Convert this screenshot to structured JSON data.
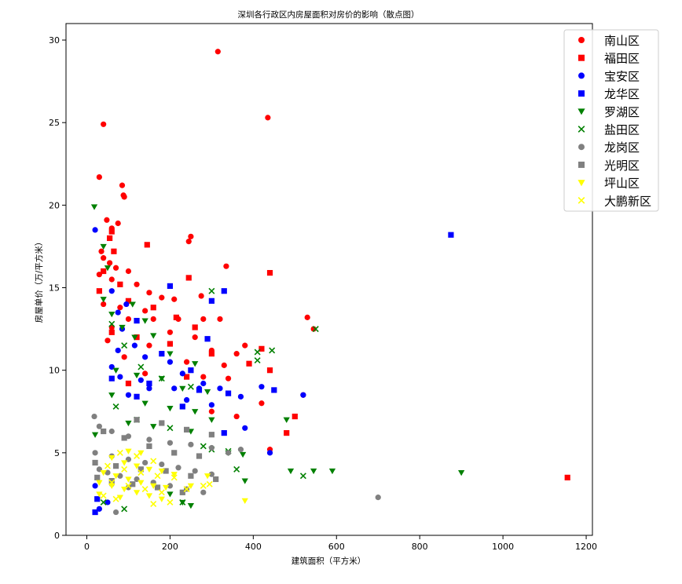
{
  "chart_data": {
    "type": "scatter",
    "title": "深圳各行政区内房屋面积对房价的影响（散点图）",
    "xlabel": "建筑面积（平方米）",
    "ylabel": "房屋单价（万/平方米）",
    "xlim": [
      -50,
      1215
    ],
    "ylim": [
      0,
      31
    ],
    "xticks": [
      0,
      200,
      400,
      600,
      800,
      1000,
      1200
    ],
    "yticks": [
      0,
      5,
      10,
      15,
      20,
      25,
      30
    ],
    "grid": false,
    "legend_position": "top-right",
    "series": [
      {
        "name": "南山区",
        "color": "#ff0000",
        "marker": "circle",
        "points": [
          [
            315,
            29.3
          ],
          [
            40,
            24.9
          ],
          [
            435,
            25.3
          ],
          [
            30,
            21.7
          ],
          [
            85,
            21.2
          ],
          [
            88,
            20.6
          ],
          [
            90,
            20.5
          ],
          [
            48,
            19.1
          ],
          [
            75,
            18.9
          ],
          [
            60,
            18.6
          ],
          [
            250,
            18.1
          ],
          [
            245,
            17.8
          ],
          [
            35,
            17.2
          ],
          [
            40,
            16.8
          ],
          [
            55,
            16.5
          ],
          [
            70,
            16.2
          ],
          [
            335,
            16.3
          ],
          [
            100,
            16.0
          ],
          [
            30,
            15.8
          ],
          [
            60,
            15.5
          ],
          [
            120,
            15.2
          ],
          [
            150,
            14.7
          ],
          [
            180,
            14.4
          ],
          [
            210,
            14.3
          ],
          [
            275,
            14.5
          ],
          [
            40,
            14.0
          ],
          [
            80,
            13.8
          ],
          [
            140,
            13.6
          ],
          [
            530,
            13.2
          ],
          [
            545,
            12.5
          ],
          [
            100,
            13.1
          ],
          [
            160,
            13.1
          ],
          [
            220,
            13.1
          ],
          [
            280,
            13.1
          ],
          [
            320,
            13.1
          ],
          [
            60,
            12.6
          ],
          [
            200,
            12.3
          ],
          [
            260,
            12.0
          ],
          [
            50,
            11.8
          ],
          [
            150,
            11.5
          ],
          [
            300,
            11.2
          ],
          [
            360,
            11.0
          ],
          [
            380,
            11.5
          ],
          [
            90,
            10.8
          ],
          [
            240,
            10.5
          ],
          [
            330,
            10.3
          ],
          [
            140,
            9.8
          ],
          [
            280,
            9.6
          ],
          [
            340,
            9.5
          ],
          [
            420,
            8.0
          ],
          [
            520,
            8.5
          ],
          [
            300,
            7.5
          ],
          [
            360,
            7.2
          ],
          [
            440,
            5.2
          ]
        ]
      },
      {
        "name": "福田区",
        "color": "#ff0000",
        "marker": "square",
        "points": [
          [
            60,
            18.4
          ],
          [
            55,
            18.0
          ],
          [
            65,
            17.2
          ],
          [
            145,
            17.6
          ],
          [
            40,
            16.0
          ],
          [
            80,
            15.2
          ],
          [
            440,
            15.9
          ],
          [
            245,
            15.6
          ],
          [
            30,
            14.8
          ],
          [
            100,
            14.2
          ],
          [
            160,
            13.8
          ],
          [
            215,
            13.2
          ],
          [
            260,
            12.6
          ],
          [
            60,
            12.3
          ],
          [
            120,
            12.0
          ],
          [
            200,
            11.6
          ],
          [
            300,
            11.0
          ],
          [
            420,
            11.3
          ],
          [
            390,
            10.4
          ],
          [
            440,
            10.0
          ],
          [
            240,
            9.6
          ],
          [
            100,
            9.2
          ],
          [
            480,
            6.2
          ],
          [
            500,
            7.2
          ],
          [
            1155,
            3.5
          ]
        ]
      },
      {
        "name": "宝安区",
        "color": "#0000ff",
        "marker": "circle",
        "points": [
          [
            20,
            18.5
          ],
          [
            60,
            14.8
          ],
          [
            75,
            13.5
          ],
          [
            95,
            14.0
          ],
          [
            85,
            12.5
          ],
          [
            115,
            11.5
          ],
          [
            75,
            11.2
          ],
          [
            140,
            10.8
          ],
          [
            200,
            10.5
          ],
          [
            60,
            10.2
          ],
          [
            230,
            9.8
          ],
          [
            80,
            9.6
          ],
          [
            130,
            9.4
          ],
          [
            280,
            9.2
          ],
          [
            420,
            9.0
          ],
          [
            150,
            8.9
          ],
          [
            210,
            8.9
          ],
          [
            270,
            8.9
          ],
          [
            320,
            8.9
          ],
          [
            370,
            8.4
          ],
          [
            520,
            8.5
          ],
          [
            100,
            8.5
          ],
          [
            240,
            8.2
          ],
          [
            300,
            7.9
          ],
          [
            380,
            6.5
          ],
          [
            440,
            5.0
          ],
          [
            20,
            3.0
          ],
          [
            30,
            1.6
          ],
          [
            50,
            2.0
          ]
        ]
      },
      {
        "name": "龙华区",
        "color": "#0000ff",
        "marker": "square",
        "points": [
          [
            875,
            18.2
          ],
          [
            200,
            15.1
          ],
          [
            330,
            14.8
          ],
          [
            300,
            14.2
          ],
          [
            120,
            13.0
          ],
          [
            290,
            11.9
          ],
          [
            180,
            11.0
          ],
          [
            250,
            10.0
          ],
          [
            60,
            9.5
          ],
          [
            150,
            9.2
          ],
          [
            270,
            8.8
          ],
          [
            340,
            8.6
          ],
          [
            450,
            8.8
          ],
          [
            120,
            8.4
          ],
          [
            230,
            7.8
          ],
          [
            330,
            6.2
          ],
          [
            25,
            2.2
          ],
          [
            20,
            1.4
          ]
        ]
      },
      {
        "name": "罗湖区",
        "color": "#008000",
        "marker": "triangle_down",
        "points": [
          [
            18,
            19.9
          ],
          [
            40,
            17.5
          ],
          [
            50,
            16.2
          ],
          [
            40,
            14.3
          ],
          [
            110,
            14.0
          ],
          [
            60,
            13.4
          ],
          [
            140,
            13.0
          ],
          [
            85,
            12.6
          ],
          [
            115,
            12.0
          ],
          [
            160,
            12.1
          ],
          [
            200,
            11.0
          ],
          [
            260,
            10.4
          ],
          [
            70,
            10.0
          ],
          [
            120,
            9.7
          ],
          [
            180,
            9.5
          ],
          [
            230,
            8.9
          ],
          [
            290,
            8.7
          ],
          [
            60,
            8.5
          ],
          [
            140,
            8.0
          ],
          [
            200,
            7.7
          ],
          [
            260,
            7.5
          ],
          [
            300,
            7.0
          ],
          [
            480,
            7.0
          ],
          [
            20,
            6.1
          ],
          [
            100,
            6.8
          ],
          [
            160,
            6.6
          ],
          [
            250,
            6.3
          ],
          [
            340,
            5.0
          ],
          [
            375,
            4.9
          ],
          [
            380,
            3.3
          ],
          [
            490,
            3.9
          ],
          [
            545,
            3.9
          ],
          [
            590,
            3.9
          ],
          [
            900,
            3.8
          ],
          [
            200,
            2.5
          ],
          [
            230,
            2.0
          ],
          [
            250,
            1.8
          ]
        ]
      },
      {
        "name": "盐田区",
        "color": "#008000",
        "marker": "x",
        "points": [
          [
            300,
            14.8
          ],
          [
            445,
            11.2
          ],
          [
            550,
            12.5
          ],
          [
            410,
            11.1
          ],
          [
            410,
            10.6
          ],
          [
            60,
            12.8
          ],
          [
            90,
            11.5
          ],
          [
            130,
            10.2
          ],
          [
            180,
            9.5
          ],
          [
            250,
            9.0
          ],
          [
            70,
            7.8
          ],
          [
            120,
            7.0
          ],
          [
            200,
            6.5
          ],
          [
            280,
            5.4
          ],
          [
            300,
            5.2
          ],
          [
            340,
            5.1
          ],
          [
            520,
            3.6
          ],
          [
            360,
            4.0
          ],
          [
            40,
            2.0
          ],
          [
            90,
            1.6
          ],
          [
            230,
            2.0
          ]
        ]
      },
      {
        "name": "龙岗区",
        "color": "#808080",
        "marker": "circle",
        "points": [
          [
            18,
            7.2
          ],
          [
            30,
            6.6
          ],
          [
            60,
            6.3
          ],
          [
            100,
            6.0
          ],
          [
            150,
            5.8
          ],
          [
            200,
            5.6
          ],
          [
            250,
            5.5
          ],
          [
            300,
            5.3
          ],
          [
            340,
            5.0
          ],
          [
            370,
            5.2
          ],
          [
            20,
            5.0
          ],
          [
            60,
            4.8
          ],
          [
            100,
            4.6
          ],
          [
            140,
            4.4
          ],
          [
            180,
            4.3
          ],
          [
            220,
            4.1
          ],
          [
            260,
            3.9
          ],
          [
            300,
            3.7
          ],
          [
            30,
            4.0
          ],
          [
            50,
            3.8
          ],
          [
            80,
            3.6
          ],
          [
            120,
            3.4
          ],
          [
            160,
            3.2
          ],
          [
            200,
            3.0
          ],
          [
            240,
            2.8
          ],
          [
            280,
            2.6
          ],
          [
            700,
            2.3
          ],
          [
            60,
            3.1
          ],
          [
            100,
            2.9
          ],
          [
            70,
            1.4
          ]
        ]
      },
      {
        "name": "光明区",
        "color": "#808080",
        "marker": "square",
        "points": [
          [
            120,
            7.0
          ],
          [
            180,
            6.8
          ],
          [
            240,
            6.4
          ],
          [
            300,
            6.1
          ],
          [
            40,
            6.3
          ],
          [
            90,
            5.9
          ],
          [
            150,
            5.4
          ],
          [
            210,
            5.0
          ],
          [
            270,
            4.8
          ],
          [
            20,
            4.4
          ],
          [
            70,
            4.2
          ],
          [
            130,
            4.0
          ],
          [
            190,
            3.9
          ],
          [
            250,
            3.6
          ],
          [
            310,
            3.4
          ],
          [
            25,
            3.5
          ],
          [
            60,
            3.3
          ],
          [
            110,
            3.1
          ],
          [
            170,
            2.9
          ],
          [
            230,
            2.6
          ]
        ]
      },
      {
        "name": "坪山区",
        "color": "#ffff00",
        "marker": "triangle_down",
        "points": [
          [
            100,
            5.1
          ],
          [
            130,
            5.0
          ],
          [
            60,
            4.7
          ],
          [
            90,
            4.4
          ],
          [
            120,
            4.2
          ],
          [
            150,
            4.0
          ],
          [
            180,
            3.9
          ],
          [
            210,
            3.7
          ],
          [
            40,
            3.8
          ],
          [
            70,
            3.6
          ],
          [
            100,
            3.4
          ],
          [
            130,
            3.2
          ],
          [
            160,
            3.0
          ],
          [
            190,
            2.9
          ],
          [
            250,
            3.0
          ],
          [
            290,
            3.6
          ],
          [
            30,
            3.2
          ],
          [
            60,
            3.0
          ],
          [
            90,
            2.8
          ],
          [
            120,
            2.6
          ],
          [
            150,
            2.4
          ],
          [
            180,
            2.2
          ],
          [
            380,
            2.1
          ],
          [
            30,
            2.5
          ],
          [
            80,
            2.3
          ]
        ]
      },
      {
        "name": "大鹏新区",
        "color": "#ffff00",
        "marker": "x",
        "points": [
          [
            80,
            5.0
          ],
          [
            120,
            4.8
          ],
          [
            160,
            4.5
          ],
          [
            50,
            4.2
          ],
          [
            90,
            4.0
          ],
          [
            130,
            3.8
          ],
          [
            170,
            3.6
          ],
          [
            210,
            3.5
          ],
          [
            60,
            3.2
          ],
          [
            100,
            3.0
          ],
          [
            140,
            2.8
          ],
          [
            180,
            2.6
          ],
          [
            240,
            2.8
          ],
          [
            280,
            3.0
          ],
          [
            295,
            3.1
          ],
          [
            40,
            2.4
          ],
          [
            70,
            2.2
          ],
          [
            200,
            2.0
          ],
          [
            160,
            1.9
          ]
        ]
      }
    ]
  }
}
